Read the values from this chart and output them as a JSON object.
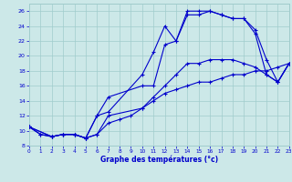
{
  "title": "Graphe des températures (°c)",
  "bg_color": "#cce8e8",
  "grid_color": "#a0cccc",
  "line_color": "#0000cc",
  "xlim": [
    0,
    23
  ],
  "ylim": [
    8,
    27
  ],
  "xticks": [
    0,
    1,
    2,
    3,
    4,
    5,
    6,
    7,
    8,
    9,
    10,
    11,
    12,
    13,
    14,
    15,
    16,
    17,
    18,
    19,
    20,
    21,
    22,
    23
  ],
  "yticks": [
    8,
    10,
    12,
    14,
    16,
    18,
    20,
    22,
    24,
    26
  ],
  "line1_x": [
    0,
    1,
    2,
    3,
    4,
    5,
    6,
    7,
    10,
    11,
    12,
    13,
    14,
    15,
    16,
    17,
    18,
    19,
    20,
    21,
    22,
    23
  ],
  "line1_y": [
    10.5,
    9.5,
    9.2,
    9.5,
    9.5,
    9.0,
    12.0,
    12.5,
    17.5,
    20.5,
    24.0,
    22.0,
    26.0,
    26.0,
    26.0,
    25.5,
    25.0,
    25.0,
    23.5,
    19.5,
    16.5,
    19.0
  ],
  "line2_x": [
    0,
    2,
    3,
    4,
    5,
    6,
    7,
    10,
    11,
    12,
    13,
    14,
    15,
    16,
    17,
    18,
    19,
    20,
    21,
    22,
    23
  ],
  "line2_y": [
    10.5,
    9.2,
    9.5,
    9.5,
    9.0,
    12.0,
    14.5,
    16.0,
    16.0,
    21.5,
    22.0,
    25.5,
    25.5,
    26.0,
    25.5,
    25.0,
    25.0,
    23.0,
    17.5,
    16.5,
    19.0
  ],
  "line3_x": [
    0,
    1,
    2,
    3,
    4,
    5,
    6,
    7,
    8,
    9,
    10,
    11,
    12,
    13,
    14,
    15,
    16,
    17,
    18,
    19,
    20,
    21,
    22,
    23
  ],
  "line3_y": [
    10.5,
    9.5,
    9.2,
    9.5,
    9.5,
    9.0,
    9.5,
    11.0,
    11.5,
    12.0,
    13.0,
    14.0,
    15.0,
    15.5,
    16.0,
    16.5,
    16.5,
    17.0,
    17.5,
    17.5,
    18.0,
    18.0,
    18.5,
    19.0
  ],
  "line4_x": [
    0,
    2,
    3,
    4,
    5,
    6,
    7,
    10,
    11,
    12,
    13,
    14,
    15,
    16,
    17,
    18,
    19,
    20,
    21,
    22,
    23
  ],
  "line4_y": [
    10.5,
    9.2,
    9.5,
    9.5,
    9.0,
    9.5,
    12.0,
    13.0,
    14.5,
    16.0,
    17.5,
    19.0,
    19.0,
    19.5,
    19.5,
    19.5,
    19.0,
    18.5,
    17.5,
    16.5,
    19.0
  ]
}
